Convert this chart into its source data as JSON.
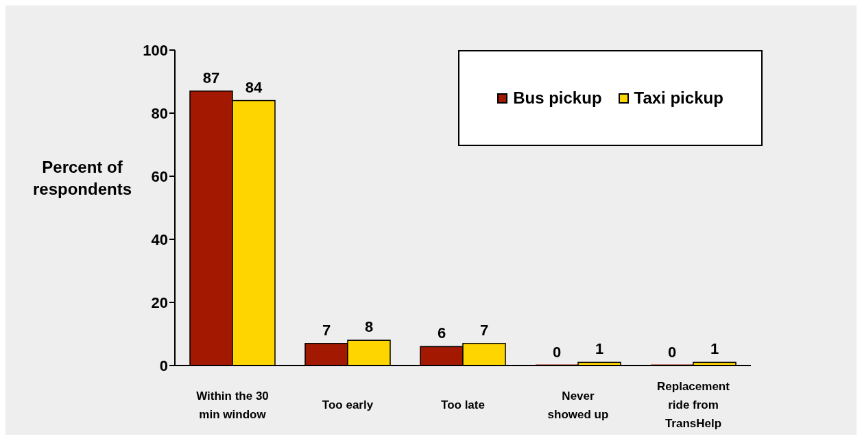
{
  "chart_data": {
    "type": "bar",
    "categories": [
      "Within the 30 min window",
      "Too early",
      "Too late",
      "Never showed up",
      "Replacement ride from TransHelp"
    ],
    "series": [
      {
        "name": "Bus pickup",
        "color": "#a31800",
        "values": [
          87,
          7,
          6,
          0,
          0
        ]
      },
      {
        "name": "Taxi pickup",
        "color": "#ffd500",
        "values": [
          84,
          8,
          7,
          1,
          1
        ]
      }
    ],
    "ylabel": "Percent of respondents",
    "ylim": [
      0,
      100
    ],
    "yticks": [
      0,
      20,
      40,
      60,
      80,
      100
    ],
    "data_labels": true,
    "legend": "top right"
  }
}
